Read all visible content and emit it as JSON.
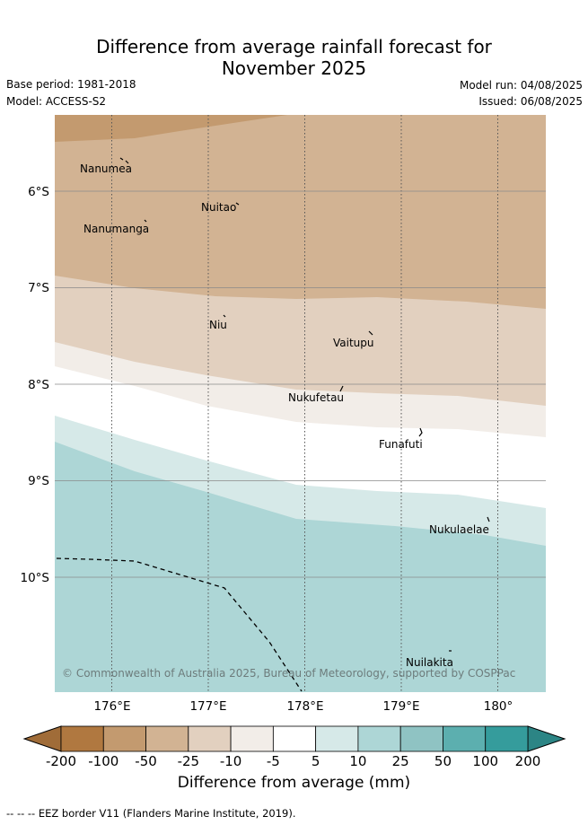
{
  "header": {
    "title_line1": "Difference from average rainfall forecast for",
    "title_line2": "November 2025",
    "base_period": "Base period: 1981-2018",
    "model": "Model: ACCESS-S2",
    "model_run": "Model run: 04/08/2025",
    "issued": "Issued: 06/08/2025"
  },
  "map": {
    "lat_labels": [
      "6°S",
      "7°S",
      "8°S",
      "9°S",
      "10°S"
    ],
    "lon_labels": [
      "176°E",
      "177°E",
      "178°E",
      "179°E",
      "180°"
    ],
    "places": [
      "Nanumea",
      "Nuitao",
      "Nanumanga",
      "Niu",
      "Vaitupu",
      "Nukufetau",
      "Funafuti",
      "Nukulaelae",
      "Nuilakita"
    ],
    "copyright": "© Commonwealth of Australia 2025, Bureau of Meteorology, supported by COSPPac",
    "bands": [
      {
        "category": "-100",
        "color": "#c39a6f"
      },
      {
        "category": "-50",
        "color": "#d2b393"
      },
      {
        "category": "-25",
        "color": "#e2d0bf"
      },
      {
        "category": "-10",
        "color": "#f2ede8"
      },
      {
        "category": "5",
        "color": "#ffffff"
      },
      {
        "category": "10",
        "color": "#d6e9e8"
      },
      {
        "category": "25",
        "color": "#add6d6"
      }
    ]
  },
  "colorbar": {
    "ticks": [
      "-200",
      "-100",
      "-50",
      "-25",
      "-10",
      "-5",
      "5",
      "10",
      "25",
      "50",
      "100",
      "200"
    ],
    "colors": [
      "#b07840",
      "#c39a6f",
      "#d2b393",
      "#e2d0bf",
      "#f2ede8",
      "#ffffff",
      "#d6e9e8",
      "#add6d6",
      "#8fc3c3",
      "#5cafaf",
      "#359c9c"
    ],
    "extend_low_color": "#a06c38",
    "extend_high_color": "#2c8585",
    "label": "Difference from average (mm)"
  },
  "footer": {
    "legend": "-- -- -- EEZ border V11 (Flanders Marine Institute, 2019)."
  }
}
